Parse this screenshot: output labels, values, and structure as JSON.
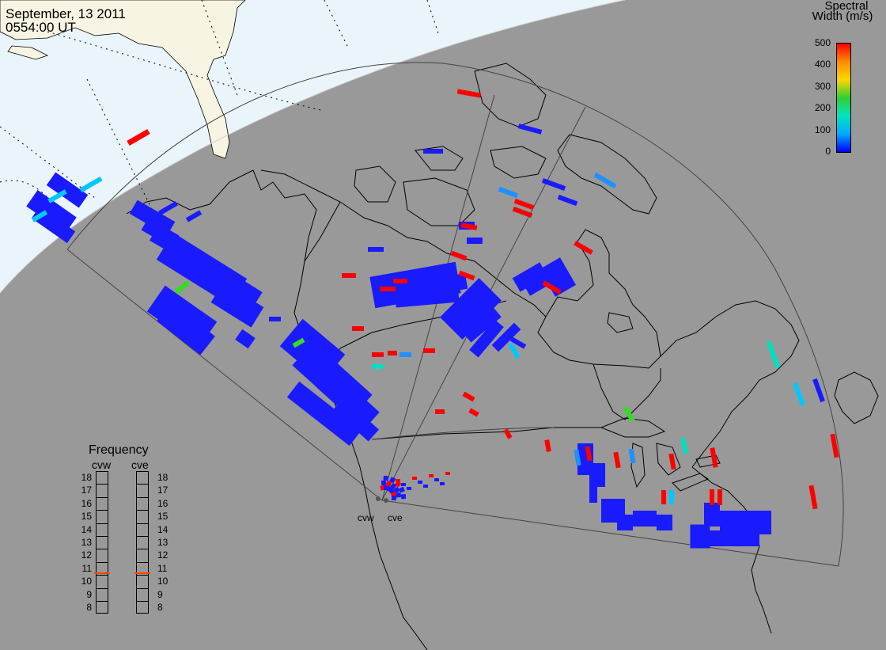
{
  "header": {
    "date": "September, 13 2011",
    "time": "0554:00 UT"
  },
  "colorbar": {
    "title_line1": "Spectral",
    "title_line2": "Width (m/s)",
    "ticks": [
      "500",
      "400",
      "300",
      "200",
      "100",
      "0"
    ],
    "min": 0,
    "max": 500,
    "colors": [
      "#ff0000",
      "#ff8c00",
      "#ffd700",
      "#32cd32",
      "#00e5c0",
      "#00aaff",
      "#0000ff"
    ]
  },
  "frequency_panel": {
    "title": "Frequency",
    "radars": [
      {
        "name": "cvw",
        "current_mhz": 10.7
      },
      {
        "name": "cve",
        "current_mhz": 10.7
      }
    ],
    "levels": [
      "18",
      "17",
      "16",
      "15",
      "14",
      "13",
      "12",
      "11",
      "10",
      "9",
      "8"
    ],
    "indicator_color": "#ff4500"
  },
  "sites": [
    {
      "name": "cvw"
    },
    {
      "name": "cve"
    }
  ],
  "map_colors": {
    "night": "#999999",
    "day_ocean": "#eaf5fb",
    "day_land": "#f8f4e3",
    "coast": "#000000",
    "fov": "#444444"
  }
}
